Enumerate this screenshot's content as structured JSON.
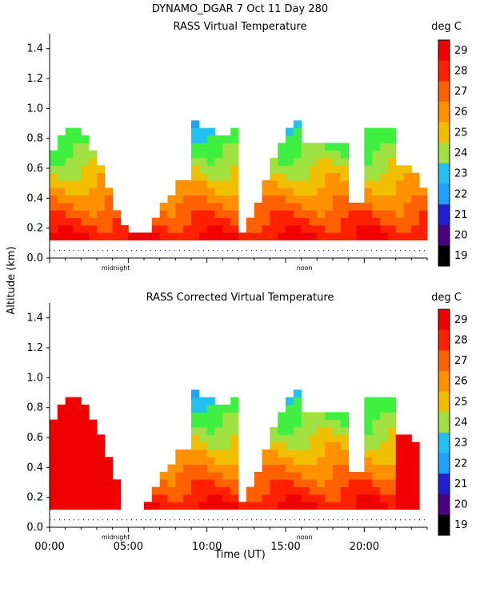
{
  "header": {
    "title": "DYNAMO_DGAR    7 Oct 11 Day 280"
  },
  "y_axis_label": "Altitude (km)",
  "x_axis_label": "Time (UT)",
  "colors": {
    "scale": [
      "#000000",
      "#4a0080",
      "#2020d0",
      "#20a0ff",
      "#20c0f0",
      "#40f040",
      "#a0e040",
      "#f0c000",
      "#ff9000",
      "#ff6000",
      "#ff2000",
      "#f00000"
    ]
  },
  "chart_data": [
    {
      "type": "heatmap",
      "title": "RASS Virtual Temperature",
      "units": "deg C",
      "xlabel": "",
      "ylabel": "Altitude (km)",
      "xlim": [
        0,
        24
      ],
      "ylim": [
        0,
        1.5
      ],
      "y_ticks": [
        "0.0",
        "0.2",
        "0.4",
        "0.6",
        "0.8",
        "1.0",
        "1.2",
        "1.4"
      ],
      "markers": [
        "midnight",
        "noon"
      ],
      "colorbar_ticks": [
        "29",
        "28",
        "27",
        "26",
        "25",
        "24",
        "23",
        "22",
        "21",
        "20",
        "19"
      ]
    },
    {
      "type": "heatmap",
      "title": "RASS Corrected Virtual Temperature",
      "units": "deg C",
      "xlabel": "Time (UT)",
      "ylabel": "Altitude (km)",
      "xlim": [
        0,
        24
      ],
      "ylim": [
        0,
        1.5
      ],
      "x_ticks": [
        "00:00",
        "05:00",
        "10:00",
        "15:00",
        "20:00"
      ],
      "y_ticks": [
        "0.0",
        "0.2",
        "0.4",
        "0.6",
        "0.8",
        "1.0",
        "1.2",
        "1.4"
      ],
      "markers": [
        "midnight",
        "noon"
      ],
      "colorbar_ticks": [
        "29",
        "28",
        "27",
        "26",
        "25",
        "24",
        "23",
        "22",
        "21",
        "20",
        "19"
      ]
    }
  ]
}
